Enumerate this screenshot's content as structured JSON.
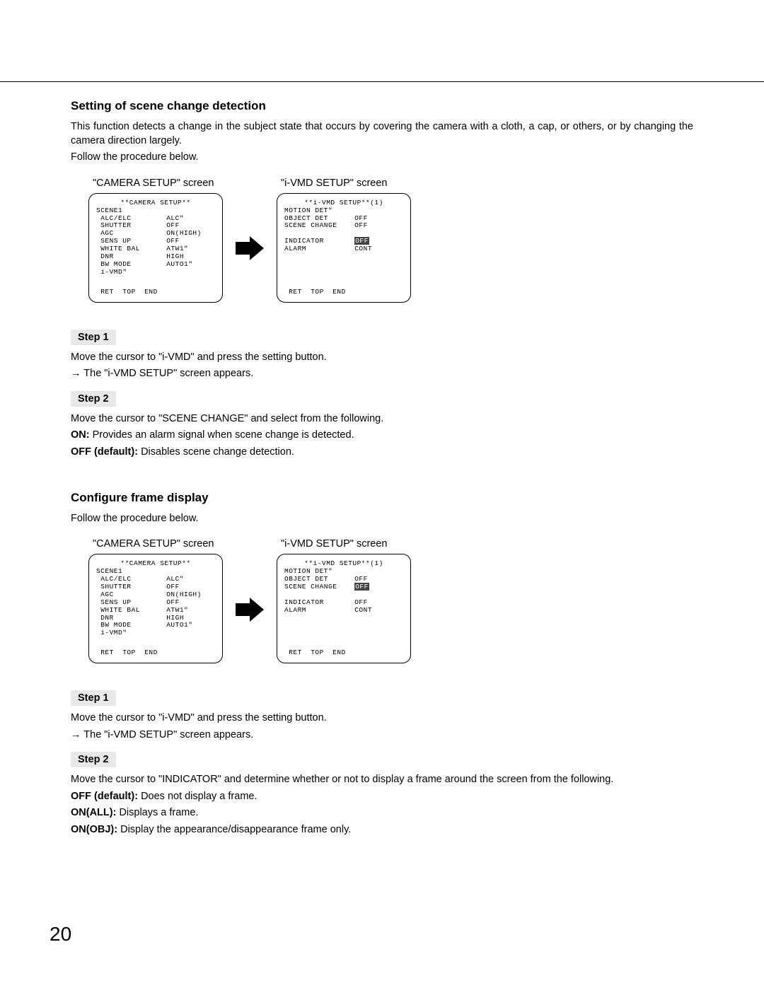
{
  "page_number": "20",
  "section1": {
    "heading": "Setting of scene change detection",
    "intro1": "This function detects a change in the subject state that occurs by covering the camera with a cloth, a cap, or others, or by changing the camera direction largely.",
    "intro2": "Follow the procedure below.",
    "left_label": "\"CAMERA SETUP\" screen",
    "right_label": "\"i-VMD SETUP\" screen",
    "camera_setup": {
      "title": "**CAMERA SETUP**",
      "lines": [
        "SCENE1",
        " ALC/ELC        ALC\"",
        " SHUTTER        OFF",
        " AGC            ON(HIGH)",
        " SENS UP        OFF",
        " WHITE BAL      ATW1\"",
        " DNR            HIGH",
        " BW MODE        AUTO1\"",
        " i-VMD\""
      ],
      "footer": " RET  TOP  END"
    },
    "ivmd_setup": {
      "title": "**i-VMD SETUP**(1)",
      "lines": [
        "MOTION DET\"",
        "OBJECT DET      OFF",
        "SCENE CHANGE    OFF",
        "",
        "INDICATOR       OFF",
        "ALARM           CONT"
      ],
      "highlight_index": 4,
      "footer": " RET  TOP  END"
    },
    "step1_label": "Step 1",
    "step1_text": "Move the cursor to \"i-VMD\" and press the setting button.",
    "step1_result": "→ The \"i-VMD SETUP\" screen appears.",
    "step2_label": "Step 2",
    "step2_text": "Move the cursor to \"SCENE CHANGE\" and select from the following.",
    "step2_on_label": "ON:",
    "step2_on_text": " Provides an alarm signal when scene change is detected.",
    "step2_off_label": "OFF (default):",
    "step2_off_text": " Disables scene change detection."
  },
  "section2": {
    "heading": "Configure frame display",
    "intro": "Follow the procedure below.",
    "left_label": "\"CAMERA SETUP\" screen",
    "right_label": "\"i-VMD SETUP\" screen",
    "camera_setup": {
      "title": "**CAMERA SETUP**",
      "lines": [
        "SCENE1",
        " ALC/ELC        ALC\"",
        " SHUTTER        OFF",
        " AGC            ON(HIGH)",
        " SENS UP        OFF",
        " WHITE BAL      ATW1\"",
        " DNR            HIGH",
        " BW MODE        AUTO1\"",
        " i-VMD\""
      ],
      "footer": " RET  TOP  END"
    },
    "ivmd_setup": {
      "title": "**i-VMD SETUP**(1)",
      "lines": [
        "MOTION DET\"",
        "OBJECT DET      OFF",
        "SCENE CHANGE    OFF",
        "",
        "INDICATOR       OFF",
        "ALARM           CONT"
      ],
      "highlight_index": 2,
      "footer": " RET  TOP  END"
    },
    "step1_label": "Step 1",
    "step1_text": "Move the cursor to \"i-VMD\" and press the setting button.",
    "step1_result": "→ The \"i-VMD SETUP\" screen appears.",
    "step2_label": "Step 2",
    "step2_text": "Move the cursor to \"INDICATOR\" and determine whether or not to display a frame around the screen from the following.",
    "step2_off_label": "OFF (default):",
    "step2_off_text": " Does not display a frame.",
    "step2_onall_label": "ON(ALL):",
    "step2_onall_text": " Displays a frame.",
    "step2_onobj_label": "ON(OBJ):",
    "step2_onobj_text": " Display the appearance/disappearance frame only."
  }
}
